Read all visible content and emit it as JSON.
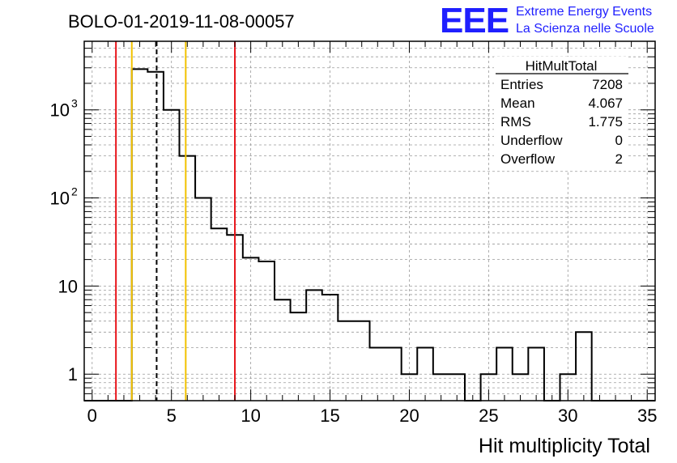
{
  "header": {
    "run_title": "BOLO-01-2019-11-08-00057",
    "logo_text": "EEE",
    "logo_line1": "Extreme Energy Events",
    "logo_line2": "La Scienza nelle Scuole"
  },
  "stats": {
    "title": "HitMultTotal",
    "rows": [
      {
        "label": "Entries",
        "value": "7208"
      },
      {
        "label": "Mean",
        "value": "4.067"
      },
      {
        "label": "RMS",
        "value": "1.775"
      },
      {
        "label": "Underflow",
        "value": "0"
      },
      {
        "label": "Overflow",
        "value": "2"
      }
    ]
  },
  "chart_data": {
    "type": "histogram",
    "title": "BOLO-01-2019-11-08-00057",
    "xlabel": "Hit multiplicity Total",
    "ylabel": "",
    "y_scale": "log",
    "xlim": [
      -0.5,
      35.5
    ],
    "ylim": [
      0.5,
      6000
    ],
    "grid": true,
    "x_ticks": [
      "0",
      "5",
      "10",
      "15",
      "20",
      "25",
      "30",
      "35"
    ],
    "y_ticks": [
      {
        "base": "1",
        "exp": ""
      },
      {
        "base": "10",
        "exp": ""
      },
      {
        "base": "10",
        "exp": "2"
      },
      {
        "base": "10",
        "exp": "3"
      }
    ],
    "bin_width": 1,
    "bins": [
      {
        "x": 0,
        "y": 0
      },
      {
        "x": 1,
        "y": 0
      },
      {
        "x": 2,
        "y": 0
      },
      {
        "x": 3,
        "y": 2900
      },
      {
        "x": 4,
        "y": 2700
      },
      {
        "x": 5,
        "y": 1000
      },
      {
        "x": 6,
        "y": 300
      },
      {
        "x": 7,
        "y": 100
      },
      {
        "x": 8,
        "y": 45
      },
      {
        "x": 9,
        "y": 38
      },
      {
        "x": 10,
        "y": 21
      },
      {
        "x": 11,
        "y": 19
      },
      {
        "x": 12,
        "y": 7
      },
      {
        "x": 13,
        "y": 5
      },
      {
        "x": 14,
        "y": 9
      },
      {
        "x": 15,
        "y": 8
      },
      {
        "x": 16,
        "y": 4
      },
      {
        "x": 17,
        "y": 4
      },
      {
        "x": 18,
        "y": 2
      },
      {
        "x": 19,
        "y": 2
      },
      {
        "x": 20,
        "y": 1
      },
      {
        "x": 21,
        "y": 2
      },
      {
        "x": 22,
        "y": 1
      },
      {
        "x": 23,
        "y": 1
      },
      {
        "x": 24,
        "y": 0
      },
      {
        "x": 25,
        "y": 1
      },
      {
        "x": 26,
        "y": 2
      },
      {
        "x": 27,
        "y": 1
      },
      {
        "x": 28,
        "y": 2
      },
      {
        "x": 29,
        "y": 0
      },
      {
        "x": 30,
        "y": 1
      },
      {
        "x": 31,
        "y": 3
      },
      {
        "x": 32,
        "y": 0
      },
      {
        "x": 33,
        "y": 0
      },
      {
        "x": 34,
        "y": 0
      },
      {
        "x": 35,
        "y": 0
      }
    ],
    "reference_lines": [
      {
        "x": 1.5,
        "color": "#e8141a",
        "style": "solid"
      },
      {
        "x": 2.5,
        "color": "#f2c200",
        "style": "solid"
      },
      {
        "x": 4.067,
        "color": "#000000",
        "style": "dashed"
      },
      {
        "x": 5.9,
        "color": "#f2c200",
        "style": "solid"
      },
      {
        "x": 9,
        "color": "#e8141a",
        "style": "solid"
      }
    ]
  }
}
